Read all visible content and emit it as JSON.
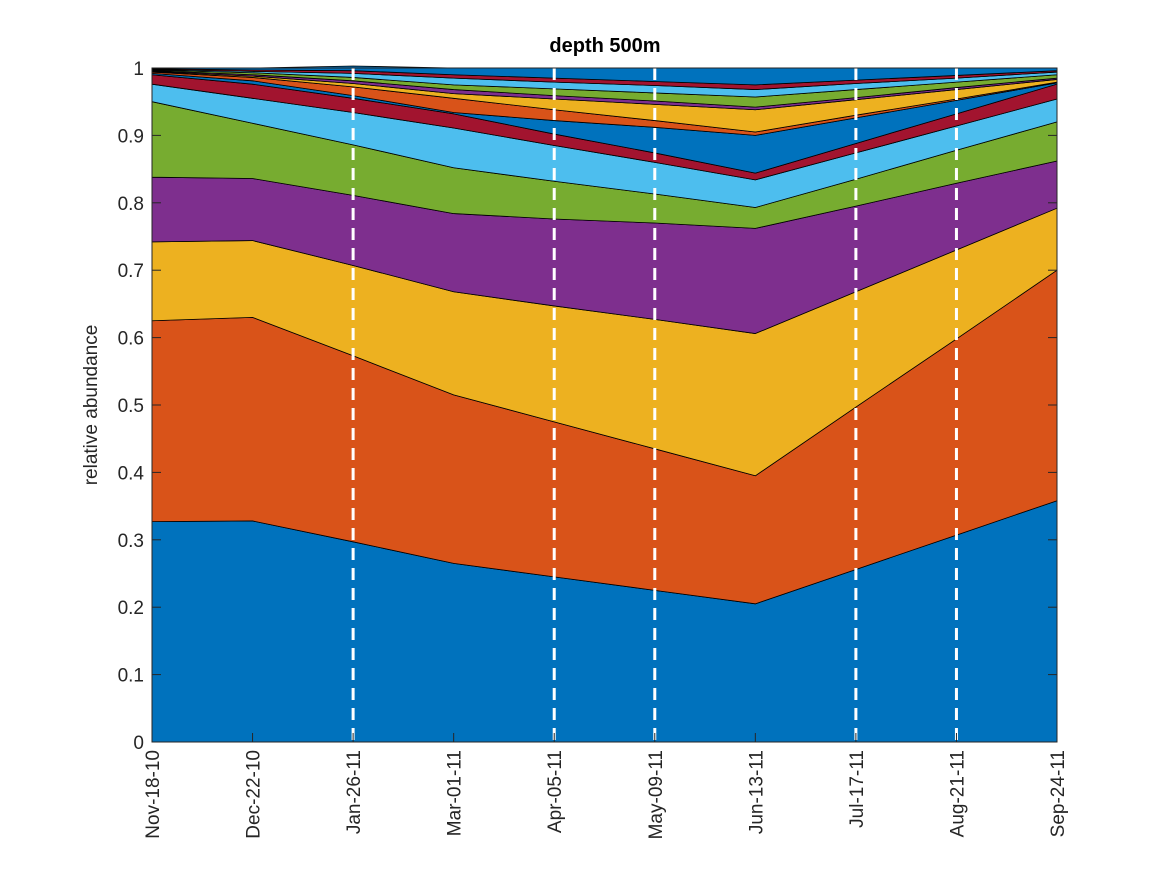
{
  "chart_data": {
    "type": "stacked_area",
    "title": "depth 500m",
    "ylabel": "relative abundance",
    "categories": [
      "Nov-18-10",
      "Dec-22-10",
      "Jan-26-11",
      "Mar-01-11",
      "Apr-05-11",
      "May-09-11",
      "Jun-13-11",
      "Jul-17-11",
      "Aug-21-11",
      "Sep-24-11"
    ],
    "ylim": [
      0,
      1
    ],
    "yticks": [
      0,
      0.1,
      0.2,
      0.3,
      0.4,
      0.5,
      0.6,
      0.7,
      0.8,
      0.9,
      1
    ],
    "dashed_lines": [
      2,
      4,
      5,
      7,
      8
    ],
    "dashed_color": "#ffffff",
    "edge_color": "#000000",
    "series": [
      {
        "color": "#0072bd",
        "values": [
          0.327,
          0.328,
          0.297,
          0.265,
          0.245,
          0.225,
          0.205,
          0.256,
          0.307,
          0.358
        ]
      },
      {
        "color": "#d95319",
        "values": [
          0.298,
          0.302,
          0.276,
          0.25,
          0.23,
          0.21,
          0.19,
          0.241,
          0.291,
          0.342
        ]
      },
      {
        "color": "#edb120",
        "values": [
          0.117,
          0.114,
          0.134,
          0.153,
          0.172,
          0.192,
          0.211,
          0.171,
          0.132,
          0.092
        ]
      },
      {
        "color": "#7e2f8e",
        "values": [
          0.096,
          0.092,
          0.104,
          0.116,
          0.129,
          0.143,
          0.156,
          0.127,
          0.099,
          0.07
        ]
      },
      {
        "color": "#77ac30",
        "values": [
          0.112,
          0.082,
          0.075,
          0.068,
          0.056,
          0.043,
          0.031,
          0.04,
          0.049,
          0.058
        ]
      },
      {
        "color": "#4dbeee",
        "values": [
          0.026,
          0.037,
          0.048,
          0.059,
          0.053,
          0.047,
          0.041,
          0.039,
          0.036,
          0.034
        ]
      },
      {
        "color": "#a2142f",
        "values": [
          0.014,
          0.021,
          0.021,
          0.021,
          0.017,
          0.014,
          0.01,
          0.014,
          0.018,
          0.022
        ]
      },
      {
        "color": "#0072bd",
        "values": [
          0.002,
          0.005,
          0.004,
          0.002,
          0.02,
          0.038,
          0.056,
          0.038,
          0.02,
          0.002
        ]
      },
      {
        "color": "#d95319",
        "values": [
          0.002,
          0.005,
          0.013,
          0.021,
          0.016,
          0.01,
          0.005,
          0.004,
          0.002,
          0.001
        ]
      },
      {
        "color": "#edb120",
        "values": [
          0.001,
          0.002,
          0.005,
          0.007,
          0.016,
          0.024,
          0.033,
          0.023,
          0.014,
          0.004
        ]
      },
      {
        "color": "#7e2f8e",
        "values": [
          0.001,
          0.002,
          0.004,
          0.006,
          0.005,
          0.005,
          0.004,
          0.003,
          0.003,
          0.002
        ]
      },
      {
        "color": "#77ac30",
        "values": [
          0.001,
          0.003,
          0.005,
          0.007,
          0.01,
          0.012,
          0.015,
          0.012,
          0.008,
          0.005
        ]
      },
      {
        "color": "#4dbeee",
        "values": [
          0.001,
          0.002,
          0.006,
          0.01,
          0.01,
          0.011,
          0.011,
          0.009,
          0.006,
          0.004
        ]
      },
      {
        "color": "#a2142f",
        "values": [
          0.001,
          0.002,
          0.004,
          0.005,
          0.006,
          0.006,
          0.007,
          0.005,
          0.004,
          0.002
        ]
      },
      {
        "color": "#0072bd",
        "values": [
          0.001,
          0.003,
          0.007,
          0.01,
          0.015,
          0.02,
          0.025,
          0.018,
          0.011,
          0.004
        ]
      }
    ]
  }
}
